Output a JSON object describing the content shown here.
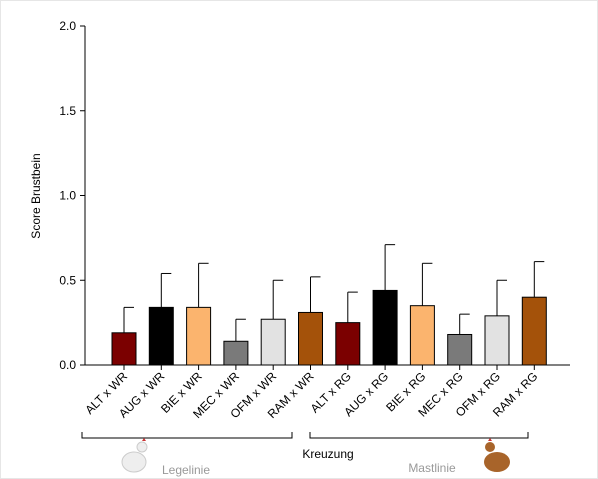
{
  "chart_data": {
    "type": "bar",
    "y_label": "Score Brustbein",
    "x_label": "Kreuzung",
    "categories": [
      "ALT x WR",
      "AUG x WR",
      "BIE x WR",
      "MEC x WR",
      "OFM x WR",
      "RAM x WR",
      "ALT x RG",
      "AUG x RG",
      "BIE x RG",
      "MEC x RG",
      "OFM x RG",
      "RAM x RG"
    ],
    "values": [
      0.19,
      0.34,
      0.34,
      0.14,
      0.27,
      0.31,
      0.25,
      0.44,
      0.35,
      0.18,
      0.29,
      0.4
    ],
    "errors": [
      0.15,
      0.2,
      0.26,
      0.13,
      0.23,
      0.21,
      0.18,
      0.27,
      0.25,
      0.12,
      0.21,
      0.21
    ],
    "colors": [
      "#7b0000",
      "#000000",
      "#fbb46e",
      "#7a7a7a",
      "#e2e2e2",
      "#a4520a",
      "#7b0000",
      "#000000",
      "#fbb46e",
      "#7a7a7a",
      "#e2e2e2",
      "#a4520a"
    ],
    "groups": [
      "Legelinie",
      "Mastlinie"
    ],
    "ylim": [
      0,
      2
    ],
    "yticks": [
      {
        "value": 0,
        "label": "0.0"
      },
      {
        "value": 0.5,
        "label": "0.5"
      },
      {
        "value": 1,
        "label": "1.0"
      },
      {
        "value": 1.5,
        "label": "1.5"
      },
      {
        "value": 2,
        "label": "2.0"
      }
    ]
  }
}
